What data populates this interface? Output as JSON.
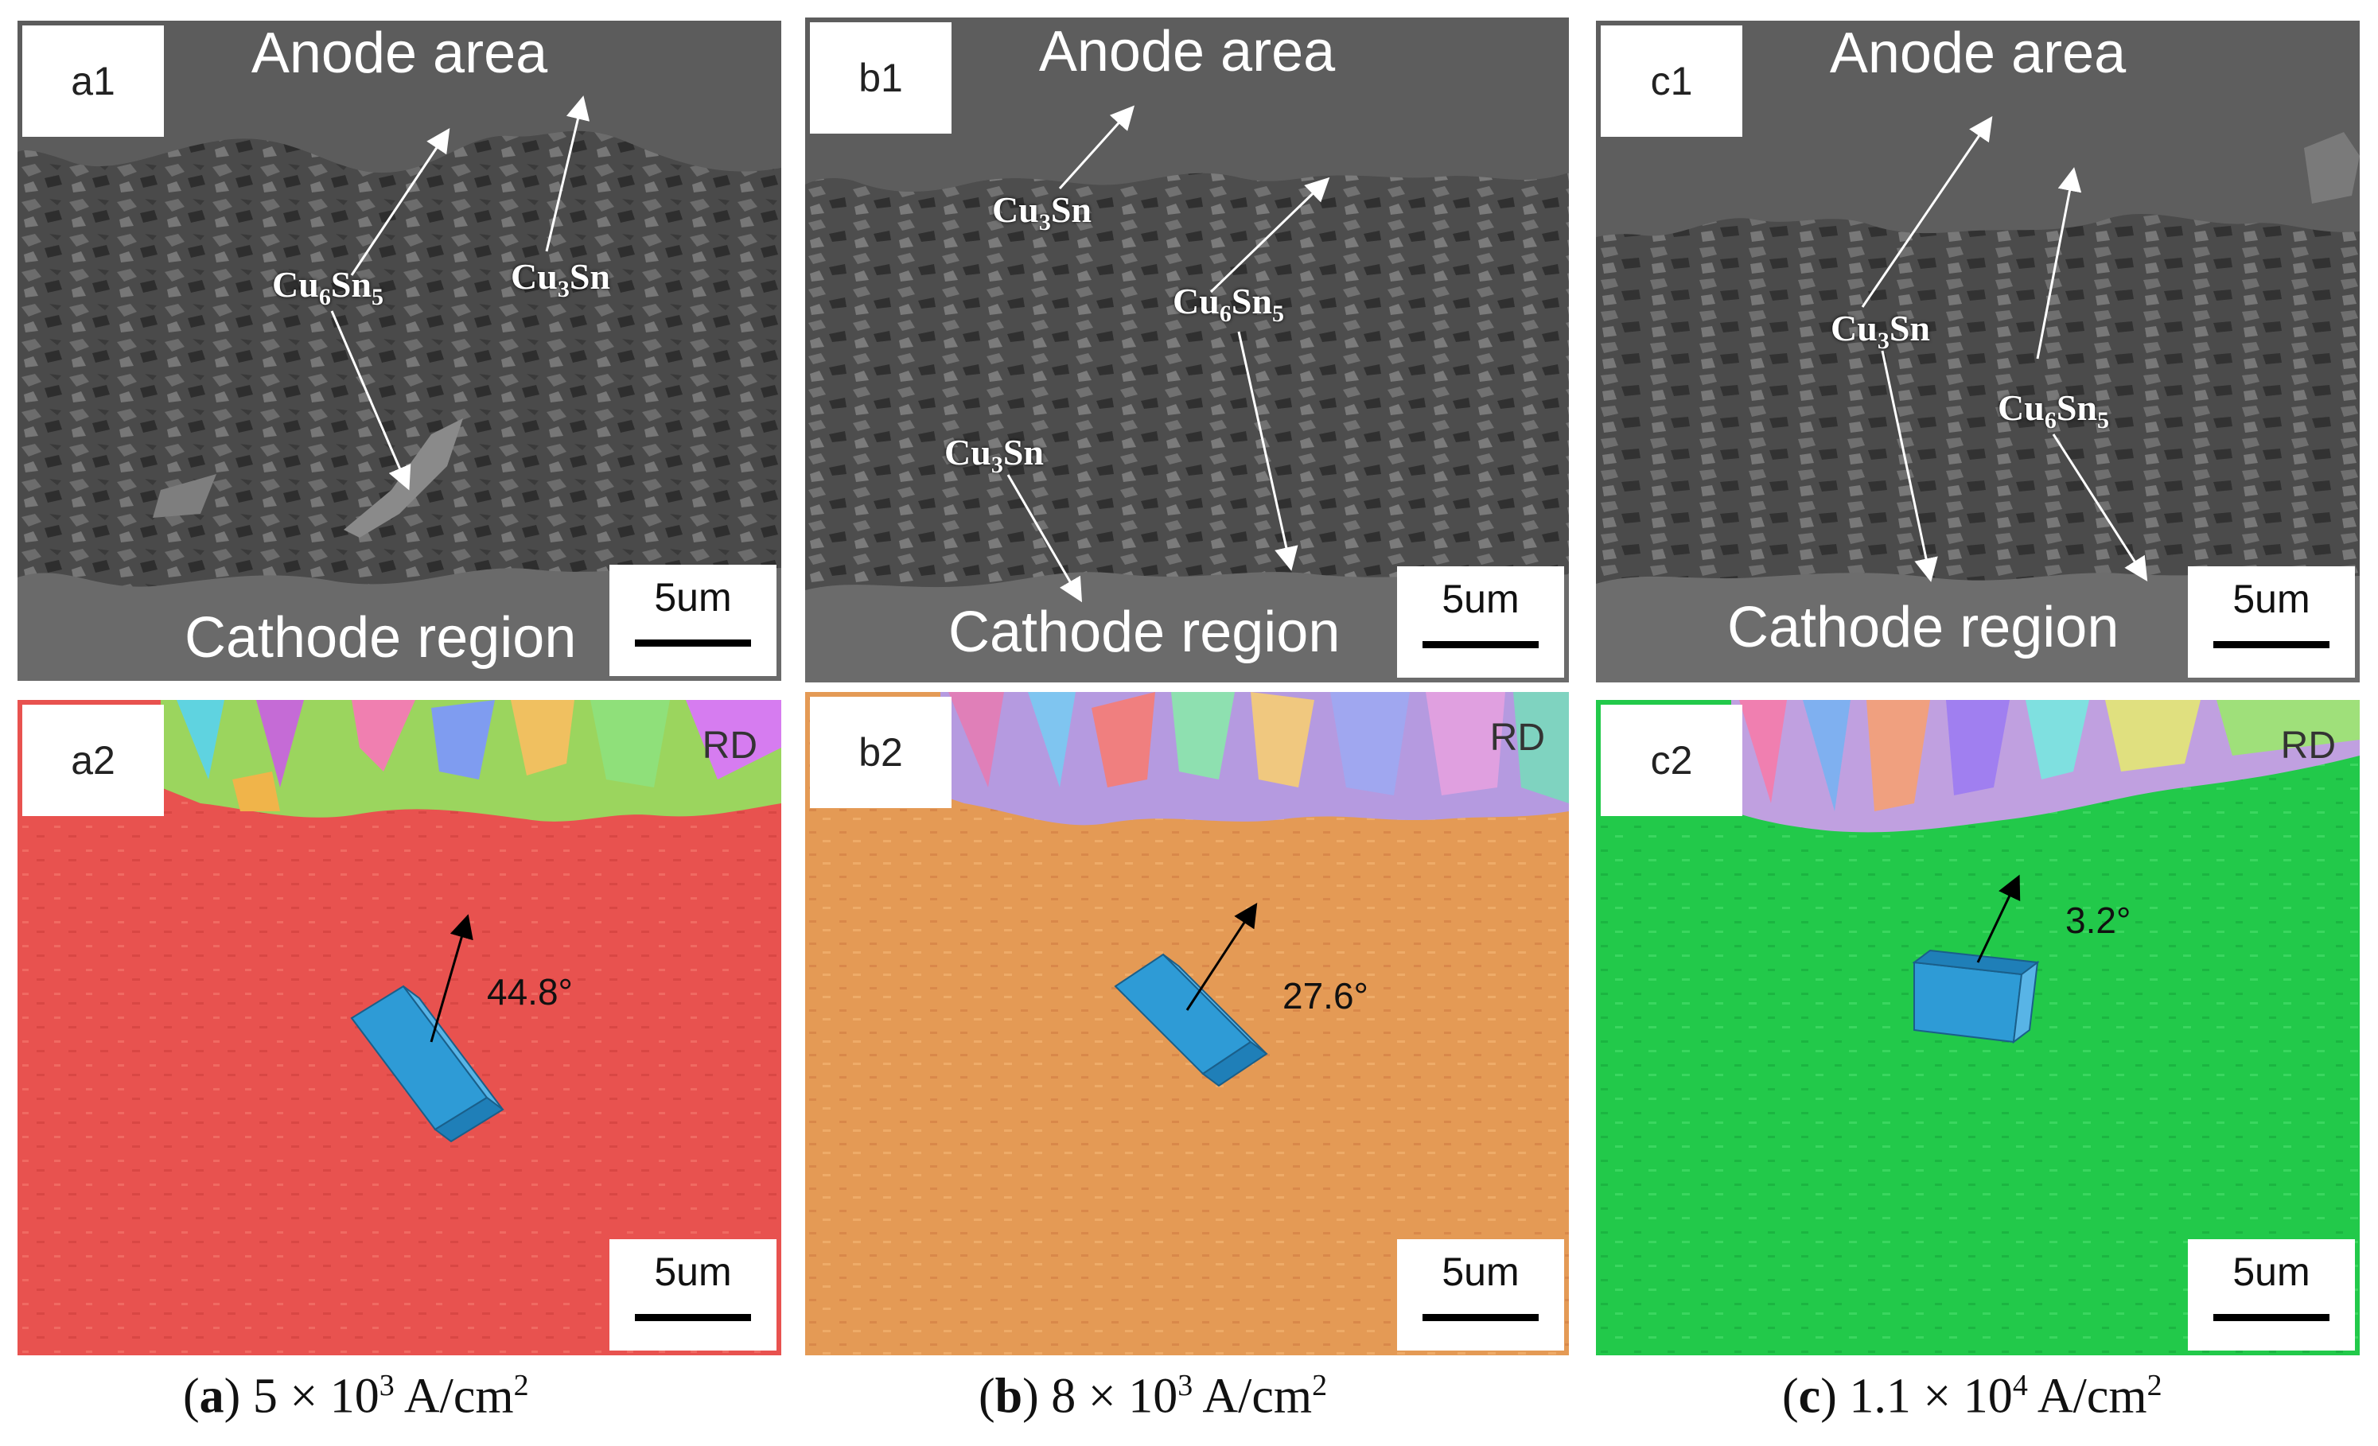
{
  "panels": {
    "a1": {
      "tag": "a1",
      "top": "Anode area",
      "bottom": "Cathode region",
      "scale": "5um"
    },
    "b1": {
      "tag": "b1",
      "top": "Anode area",
      "bottom": "Cathode region",
      "scale": "5um"
    },
    "c1": {
      "tag": "c1",
      "top": "Anode area",
      "bottom": "Cathode region",
      "scale": "5um"
    },
    "a2": {
      "tag": "a2",
      "rd": "RD",
      "angle": "44.8°",
      "scale": "5um"
    },
    "b2": {
      "tag": "b2",
      "rd": "RD",
      "angle": "27.6°",
      "scale": "5um"
    },
    "c2": {
      "tag": "c2",
      "rd": "RD",
      "angle": "3.2°",
      "scale": "5um"
    }
  },
  "phases": {
    "cu": "Cu",
    "sn": "Sn",
    "cu6sn5_sub1": "6",
    "cu6sn5_sub2": "5",
    "cu3sn_sub": "3"
  },
  "captions": {
    "a": {
      "letter": "a",
      "mantissa": "5 × 10",
      "exp": "3",
      "unit": " A/cm",
      "unit_exp": "2"
    },
    "b": {
      "letter": "b",
      "mantissa": "8 × 10",
      "exp": "3",
      "unit": " A/cm",
      "unit_exp": "2"
    },
    "c": {
      "letter": "c",
      "mantissa": "1.1 × 10",
      "exp": "4",
      "unit": " A/cm",
      "unit_exp": "2"
    }
  },
  "colors": {
    "sem_dark": "#3e3e3e",
    "sem_mid": "#5a5a5a",
    "sem_light": "#7a7a7a",
    "ebsd_a": "#e8524f",
    "ebsd_b": "#e49a55",
    "ebsd_c": "#22c94a",
    "crystal": "#2e9bd6"
  }
}
